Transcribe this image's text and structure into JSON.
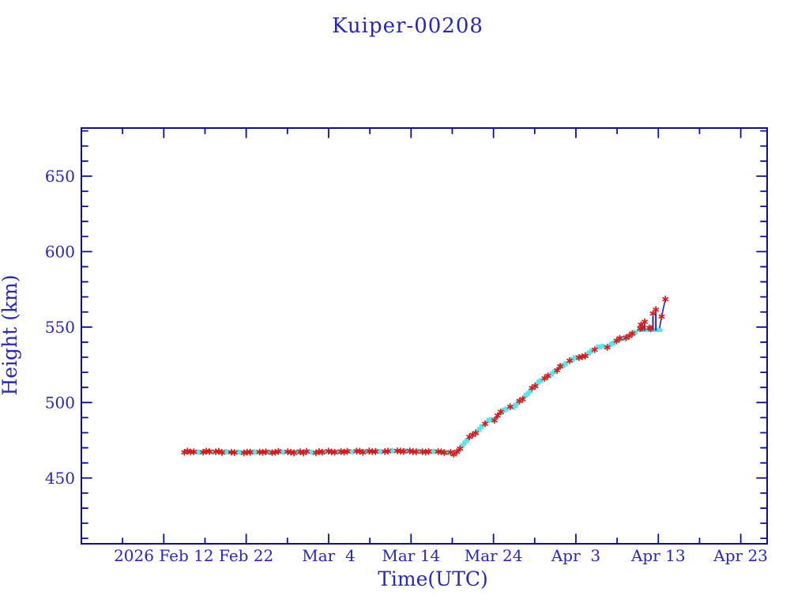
{
  "title": "Kuiper-00208",
  "chart_data": {
    "type": "line",
    "title": "Kuiper-00208",
    "xlabel": "Time(UTC)",
    "ylabel": "Height (km)",
    "x_unit": "days since 2026 Feb 12 UTC",
    "y_unit": "km",
    "xlim": [
      -10,
      73.2
    ],
    "ylim": [
      406.4,
      681.9
    ],
    "grid": false,
    "legend": "none",
    "x_major_ticks": [
      0,
      10,
      20,
      30,
      40,
      50,
      60,
      70
    ],
    "x_tick_labels": [
      "2026 Feb 12",
      "Feb 22",
      "Mar  4",
      "Mar 14",
      "Mar 24",
      "Apr  3",
      "Apr 13",
      "Apr 23"
    ],
    "x_minor_ticks": [
      -5,
      5,
      15,
      25,
      35,
      45,
      55,
      65
    ],
    "y_major_ticks": [
      450,
      500,
      550,
      600,
      650
    ],
    "y_minor_step": 10,
    "y_minor_range": [
      410,
      680
    ],
    "series": [
      {
        "name": "height-profile",
        "description": "Satellite height vs time: ~467 km from Feb 14 to Mar 19, then climb to ~548 km by Apr 10, excursions to ~569 km near Apr 13",
        "marker": "asterisk",
        "marker_color": "#d01f1f",
        "line_color": "#2222c4",
        "marker_step_days": 0.38,
        "keypoints": [
          [
            2.5,
            467.5
          ],
          [
            5,
            467.3
          ],
          [
            8,
            467.1
          ],
          [
            11,
            467.0
          ],
          [
            14,
            467.3
          ],
          [
            17,
            467.1
          ],
          [
            20,
            467.3
          ],
          [
            23,
            467.4
          ],
          [
            26,
            467.6
          ],
          [
            28,
            467.8
          ],
          [
            30,
            467.8
          ],
          [
            32,
            467.6
          ],
          [
            33.5,
            467.3
          ],
          [
            34.6,
            466.9
          ],
          [
            35.2,
            466.2
          ],
          [
            35.7,
            467.5
          ],
          [
            36.3,
            472
          ],
          [
            37.2,
            477.5
          ],
          [
            37.9,
            480.5
          ],
          [
            38.4,
            483
          ],
          [
            39.1,
            487
          ],
          [
            39.7,
            489
          ],
          [
            40.1,
            488.5
          ],
          [
            40.7,
            492.5
          ],
          [
            41.4,
            495.5
          ],
          [
            41.9,
            497
          ],
          [
            42.3,
            496.5
          ],
          [
            43.0,
            500
          ],
          [
            43.7,
            503.5
          ],
          [
            44.3,
            507
          ],
          [
            45.0,
            511
          ],
          [
            45.6,
            514
          ],
          [
            46.2,
            516.5
          ],
          [
            46.7,
            517.5
          ],
          [
            47.4,
            520.5
          ],
          [
            48.1,
            523.5
          ],
          [
            48.8,
            526
          ],
          [
            49.5,
            528.5
          ],
          [
            50.1,
            530
          ],
          [
            50.6,
            529.5
          ],
          [
            51.2,
            531.5
          ],
          [
            52.0,
            534.5
          ],
          [
            52.6,
            536.5
          ],
          [
            53.2,
            537.5
          ],
          [
            53.8,
            537
          ],
          [
            54.5,
            539.5
          ],
          [
            55.2,
            542
          ],
          [
            55.9,
            543
          ],
          [
            56.4,
            543.5
          ],
          [
            56.8,
            545
          ],
          [
            57.3,
            547
          ],
          [
            57.6,
            548
          ],
          [
            60.1,
            548
          ],
          [
            60.4,
            557
          ],
          [
            60.85,
            568.5
          ]
        ]
      },
      {
        "name": "cyan-overlay",
        "description": "Cyan marker patches interleaved along the profile",
        "marker": "square",
        "color": "#5fe3e8",
        "segments": [
          [
            4.0,
            4.5
          ],
          [
            5.6,
            6.0
          ],
          [
            7.3,
            7.8
          ],
          [
            9.0,
            9.4
          ],
          [
            10.8,
            11.3
          ],
          [
            12.6,
            13.0
          ],
          [
            14.2,
            14.7
          ],
          [
            16.0,
            16.5
          ],
          [
            17.7,
            18.1
          ],
          [
            19.3,
            19.8
          ],
          [
            21.0,
            21.4
          ],
          [
            22.6,
            23.1
          ],
          [
            24.3,
            24.8
          ],
          [
            26.0,
            26.4
          ],
          [
            27.6,
            28.0
          ],
          [
            29.2,
            29.7
          ],
          [
            30.9,
            31.3
          ],
          [
            32.5,
            33.0
          ],
          [
            34.1,
            34.5
          ],
          [
            36.2,
            36.8
          ],
          [
            38.0,
            38.6
          ],
          [
            39.4,
            40.0
          ],
          [
            41.0,
            41.7
          ],
          [
            42.4,
            43.0
          ],
          [
            43.9,
            44.5
          ],
          [
            45.2,
            45.9
          ],
          [
            46.8,
            47.4
          ],
          [
            48.2,
            48.9
          ],
          [
            49.6,
            50.3
          ],
          [
            51.3,
            51.9
          ],
          [
            52.7,
            53.4
          ],
          [
            54.0,
            54.7
          ],
          [
            55.4,
            56.0
          ],
          [
            56.9,
            57.4
          ]
        ]
      },
      {
        "name": "terminal-cyan-band",
        "description": "Flat cyan band near end of track",
        "color": "#5fe3e8",
        "t_range": [
          57.6,
          60.3
        ],
        "height_km": 548
      },
      {
        "name": "terminal-spikes",
        "description": "Vertical blue excursions above the 548 km band, red star at top",
        "line_color": "#2323c8",
        "marker_color": "#d01f1f",
        "points": [
          [
            57.9,
            551.5
          ],
          [
            58.35,
            553.5
          ],
          [
            59.35,
            559.0
          ],
          [
            59.7,
            561.5
          ]
        ],
        "base_km": 548
      },
      {
        "name": "band-red-markers",
        "marker_color": "#d01f1f",
        "points": [
          [
            57.8,
            549
          ],
          [
            58.1,
            549.5
          ],
          [
            58.9,
            549.5
          ],
          [
            59.1,
            549
          ]
        ]
      },
      {
        "name": "tail-red-markers",
        "marker_color": "#d01f1f",
        "points": [
          [
            60.4,
            557
          ],
          [
            60.85,
            568.5
          ]
        ]
      }
    ]
  },
  "colors": {
    "frame": "#0e0e8e",
    "text": "#2626b8",
    "red_marker": "#d01f1f",
    "cyan_marker": "#5fe3e8",
    "blue_line": "#2222c4",
    "background": "#ffffff"
  }
}
